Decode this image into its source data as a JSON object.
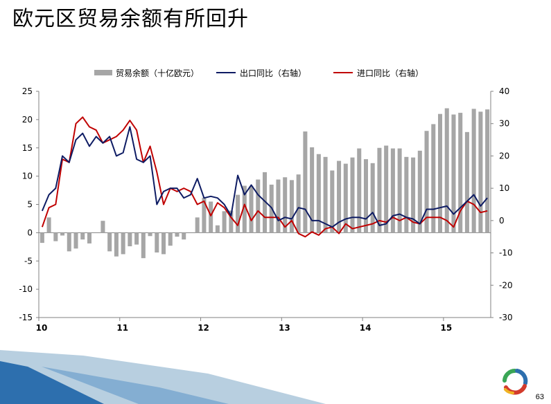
{
  "slide": {
    "title": "欧元区贸易余额有所回升",
    "page_number": "63"
  },
  "colors": {
    "bar": "#a6a6a6",
    "export_line": "#0d1b63",
    "import_line": "#c00000",
    "footer_light": "#b8cfe0",
    "footer_dark": "#2d6fae"
  },
  "chart_data": {
    "type": "bar+line",
    "left_axis": {
      "min": -15,
      "max": 25,
      "step": 5,
      "ticks": [
        "25",
        "20",
        "15",
        "10",
        "5",
        "0",
        "-5",
        "-10",
        "-15"
      ]
    },
    "right_axis": {
      "min": -30,
      "max": 40,
      "step": 10,
      "ticks": [
        "40",
        "30",
        "20",
        "10",
        "0",
        "-10",
        "-20",
        "-30"
      ]
    },
    "x_ticks": [
      {
        "label": "10",
        "index": 0
      },
      {
        "label": "11",
        "index": 12
      },
      {
        "label": "12",
        "index": 24
      },
      {
        "label": "13",
        "index": 36
      },
      {
        "label": "14",
        "index": 48
      },
      {
        "label": "15",
        "index": 60
      }
    ],
    "legend": [
      {
        "key": "bars",
        "label": "贸易余额（十亿欧元）",
        "kind": "bar"
      },
      {
        "key": "exports",
        "label": "出口同比（右轴）",
        "kind": "line"
      },
      {
        "key": "imports",
        "label": "进口同比（右轴）",
        "kind": "line"
      }
    ],
    "legend_position": "top",
    "series": {
      "bars": [
        -1.8,
        2.7,
        -1.5,
        -0.5,
        -3.3,
        -2.8,
        -1.2,
        -1.9,
        0,
        2.1,
        -3.3,
        -4.2,
        -3.8,
        -2.4,
        -2.1,
        -4.5,
        -0.6,
        -3.5,
        -3.8,
        -2.3,
        -0.7,
        -1.2,
        0,
        2.7,
        6.2,
        5.5,
        1.3,
        3.8,
        3.9,
        6.7,
        8.3,
        8.2,
        9.4,
        10.7,
        8.5,
        9.4,
        9.8,
        9.3,
        10.3,
        17.9,
        15.1,
        13.9,
        13.4,
        11.0,
        12.7,
        12.2,
        13.3,
        14.9,
        13.0,
        12.3,
        15.0,
        15.4,
        14.9,
        14.9,
        13.4,
        13.3,
        14.5,
        18.0,
        19.2,
        21.0,
        22.0,
        20.9,
        21.2,
        17.8,
        21.9,
        21.4,
        21.8
      ],
      "exports": [
        3,
        8,
        10,
        20,
        18,
        25,
        27,
        23,
        26,
        24,
        26,
        20,
        21,
        29,
        19,
        18,
        20,
        5,
        9,
        10,
        10,
        7,
        8,
        13,
        7,
        7.5,
        7,
        5,
        1.5,
        14,
        8,
        11,
        8,
        6,
        4,
        0,
        1,
        0.5,
        4,
        3.5,
        0,
        0,
        -1,
        -2,
        -0.5,
        0.5,
        1,
        1,
        0.5,
        2.5,
        -1.5,
        -1,
        1.5,
        2,
        1,
        0.5,
        -1,
        3.5,
        3.5,
        4,
        4.5,
        2,
        4,
        6,
        8,
        4.5,
        7
      ],
      "imports": [
        -2,
        4,
        5,
        19,
        18,
        30,
        32,
        29,
        28,
        24,
        25,
        26,
        28,
        31,
        28,
        18,
        23,
        15,
        5,
        10,
        9,
        10,
        9,
        5,
        6,
        1.5,
        5.5,
        4,
        1,
        -1.5,
        5,
        0,
        3,
        1,
        1,
        1,
        -2,
        0,
        -4,
        -5,
        -3.5,
        -4.5,
        -2.5,
        -2,
        -4,
        -1,
        -2.5,
        -2,
        -1.5,
        -1,
        0,
        -0.5,
        1,
        0,
        1,
        -0.5,
        -1,
        1,
        1,
        1,
        0,
        -2,
        3,
        6,
        5,
        2.5,
        3
      ]
    }
  }
}
